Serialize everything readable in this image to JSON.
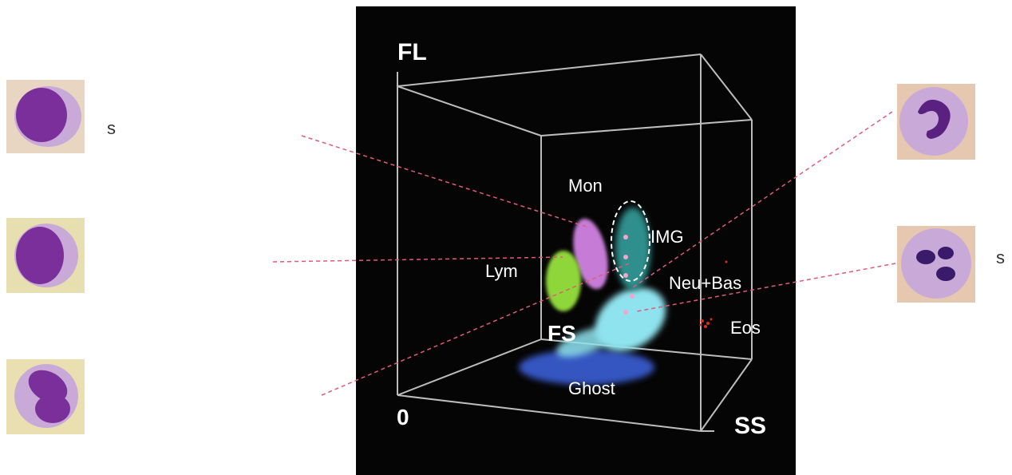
{
  "plot": {
    "background": "#050505",
    "axis_labels": {
      "fl": "FL",
      "fs": "FS",
      "ss": "SS",
      "origin": "0"
    },
    "populations": [
      {
        "key": "mon",
        "label": "Mon",
        "color": "#c67bd6"
      },
      {
        "key": "img",
        "label": "IMG",
        "color": "#2f8f8c"
      },
      {
        "key": "lym",
        "label": "Lym",
        "color": "#8fd63a"
      },
      {
        "key": "neu",
        "label": "Neu+Bas",
        "color": "#8fe3ee"
      },
      {
        "key": "eos",
        "label": "Eos",
        "color": "#e02a1a"
      },
      {
        "key": "ghost",
        "label": "Ghost",
        "color": "#3a5fd6"
      }
    ],
    "gate_color": "#ffffff"
  },
  "cells": {
    "left": [
      {
        "key": "monocyte",
        "caption": "s",
        "nucleus": "round"
      },
      {
        "key": "lymphocyte",
        "caption": "",
        "nucleus": "round"
      },
      {
        "key": "immature",
        "caption": "",
        "nucleus": "lobed"
      }
    ],
    "right": [
      {
        "key": "neutrophil",
        "caption": "",
        "nucleus": "band"
      },
      {
        "key": "segmented",
        "caption": "s",
        "nucleus": "segmented"
      }
    ]
  },
  "colors": {
    "leader_line": "#e05a7a",
    "cell_bg": "#e9d6c2",
    "cytoplasm": "#c9a9d8",
    "nucleus": "#7a2f9a"
  }
}
